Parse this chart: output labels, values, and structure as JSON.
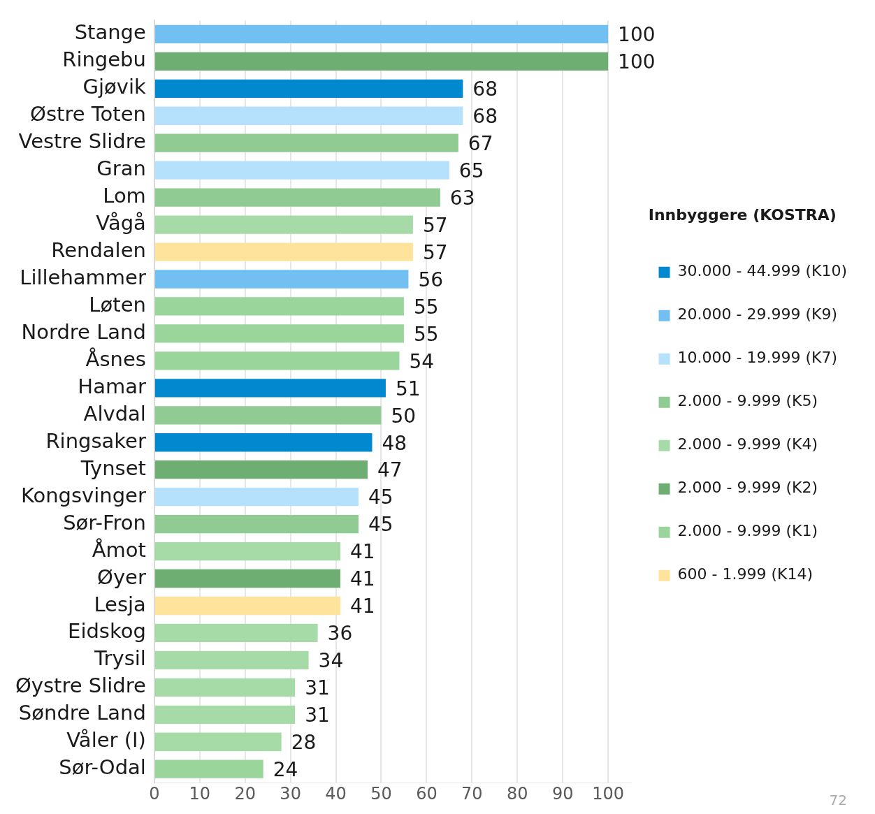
{
  "chart_data": {
    "type": "bar",
    "orientation": "horizontal",
    "stacked": true,
    "categories": [
      "Stange",
      "Ringebu",
      "Gjøvik",
      "Østre Toten",
      "Vestre Slidre",
      "Gran",
      "Lom",
      "Vågå",
      "Rendalen",
      "Lillehammer",
      "Løten",
      "Nordre Land",
      "Åsnes",
      "Hamar",
      "Alvdal",
      "Ringsaker",
      "Tynset",
      "Kongsvinger",
      "Sør-Fron",
      "Åmot",
      "Øyer",
      "Lesja",
      "Eidskog",
      "Trysil",
      "Øystre Slidre",
      "Søndre Land",
      "Våler (I)",
      "Sør-Odal"
    ],
    "series": [
      {
        "name": "30.000 - 44.999 (K10)",
        "color": "#0288ce",
        "values": [
          null,
          null,
          68,
          null,
          null,
          null,
          null,
          null,
          null,
          null,
          null,
          null,
          null,
          51,
          null,
          48,
          null,
          null,
          null,
          null,
          null,
          null,
          null,
          null,
          null,
          null,
          null,
          null
        ]
      },
      {
        "name": "20.000 - 29.999 (K9)",
        "color": "#72bff2",
        "values": [
          100,
          null,
          null,
          null,
          null,
          null,
          null,
          null,
          null,
          56,
          null,
          null,
          null,
          null,
          null,
          null,
          null,
          null,
          null,
          null,
          null,
          null,
          null,
          null,
          null,
          null,
          null,
          null
        ]
      },
      {
        "name": "10.000 - 19.999 (K7)",
        "color": "#b5e1fd",
        "values": [
          null,
          null,
          null,
          68,
          null,
          65,
          null,
          null,
          null,
          null,
          null,
          null,
          null,
          null,
          null,
          null,
          null,
          45,
          null,
          null,
          null,
          null,
          null,
          null,
          null,
          null,
          null,
          null
        ]
      },
      {
        "name": "2.000 - 9.999 (K5)",
        "color": "#8fcb92",
        "values": [
          null,
          null,
          null,
          null,
          67,
          null,
          63,
          null,
          null,
          null,
          null,
          null,
          null,
          null,
          50,
          null,
          null,
          null,
          45,
          null,
          null,
          null,
          null,
          null,
          null,
          null,
          null,
          null
        ]
      },
      {
        "name": "2.000 - 9.999 (K4)",
        "color": "#a6dba8",
        "values": [
          null,
          null,
          null,
          null,
          null,
          null,
          null,
          57,
          null,
          null,
          null,
          null,
          null,
          null,
          null,
          null,
          null,
          null,
          null,
          41,
          null,
          null,
          36,
          34,
          31,
          31,
          28,
          null
        ]
      },
      {
        "name": "2.000 - 9.999 (K2)",
        "color": "#6fae72",
        "values": [
          null,
          100,
          null,
          null,
          null,
          null,
          null,
          null,
          null,
          null,
          null,
          null,
          null,
          null,
          null,
          null,
          47,
          null,
          null,
          null,
          41,
          null,
          null,
          null,
          null,
          null,
          null,
          null
        ]
      },
      {
        "name": "2.000 - 9.999 (K1)",
        "color": "#9ad59c",
        "values": [
          null,
          null,
          null,
          null,
          null,
          null,
          null,
          null,
          null,
          null,
          55,
          55,
          54,
          null,
          null,
          null,
          null,
          null,
          null,
          null,
          null,
          null,
          null,
          null,
          null,
          null,
          null,
          24
        ]
      },
      {
        "name": "600 - 1.999 (K14)",
        "color": "#fee39c",
        "values": [
          null,
          null,
          null,
          null,
          null,
          null,
          null,
          null,
          57,
          null,
          null,
          null,
          null,
          null,
          null,
          null,
          null,
          null,
          null,
          null,
          null,
          41,
          null,
          null,
          null,
          null,
          null,
          null
        ]
      }
    ],
    "xlim": [
      0,
      105
    ],
    "xticks": [
      0,
      10,
      20,
      30,
      40,
      50,
      60,
      70,
      80,
      90,
      100
    ],
    "grid": "x",
    "legend": "right",
    "legend_title": "Innbyggere (KOSTRA)",
    "data_labels": true,
    "annotations": [
      "72"
    ]
  }
}
